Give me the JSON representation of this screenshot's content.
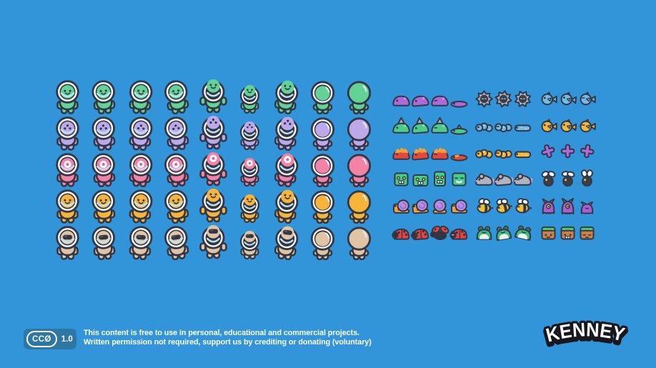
{
  "colors": {
    "background": "#3295d9",
    "outline": "#333745",
    "helmet_white": "#ffffff",
    "helmet_glass": "#bfe4f4",
    "badge_bg": "#2e76a4",
    "text": "#ffffff",
    "logo_fill": "#ffffff",
    "logo_outline": "#17171d"
  },
  "characters": {
    "poses": [
      "stand",
      "step-left",
      "step-right",
      "run",
      "jump",
      "duck",
      "lean",
      "back-helmet",
      "back"
    ],
    "rows": [
      {
        "name": "green",
        "body": "#63d395",
        "shade": "#3cba77",
        "face": "two-eyes-smile"
      },
      {
        "name": "purple",
        "body": "#bda9e9",
        "shade": "#9b80d8",
        "face": "three-eyes"
      },
      {
        "name": "pink",
        "body": "#f382a7",
        "shade": "#e3628e",
        "face": "cyclops"
      },
      {
        "name": "yellow",
        "body": "#f6b53a",
        "shade": "#e3951d",
        "face": "two-eyes-smile"
      },
      {
        "name": "beige",
        "body": "#e0c4a4",
        "shade": "#c9a87e",
        "face": "visor"
      }
    ]
  },
  "creatures": {
    "palette": {
      "slime-purple": {
        "main": "#ae68d8",
        "light": "#c98ff0"
      },
      "spiky-urchin": {
        "main": "#adb2bc",
        "dark": "#3a3e48"
      },
      "fish-blue": {
        "main": "#74bbe8",
        "light": "#a5d7f2"
      },
      "slime-green-spike": {
        "main": "#4ccb8b",
        "light": "#7fe0ae",
        "spike": "#adb2bc"
      },
      "worm-blue": {
        "main": "#74bbe8",
        "light": "#a5d7f2"
      },
      "fish-gold": {
        "main": "#f2b83c",
        "light": "#f8d36e"
      },
      "slime-fire": {
        "main": "#e5483f",
        "flame": "#f2a03c"
      },
      "worm-gold": {
        "main": "#f2b83c",
        "light": "#f8d36e"
      },
      "flyer-purple": {
        "main": "#b269da",
        "spot": "#8f47c0"
      },
      "block-green": {
        "main": "#44ce8c",
        "eye": "#f2c13f"
      },
      "mouse": {
        "main": "#b0b4bd",
        "pink": "#f0a0b4"
      },
      "fly": {
        "main": "#3a3e48",
        "wing": "#ffffff",
        "eye": "#f2c13f"
      },
      "snail": {
        "shell": "#ba8fe2",
        "body": "#f2a23c",
        "spiral": "#9a6fd0"
      },
      "bee": {
        "main": "#f2c13c",
        "wing": "#ffffff"
      },
      "monster-purple": {
        "main": "#a95fd0",
        "eye": "#f2c13f",
        "horn": "#ead9f7"
      },
      "ladybug": {
        "main": "#e5433f",
        "dark": "#33363f"
      },
      "frog": {
        "main": "#3dbe7d",
        "belly": "#eef4f0"
      },
      "block-dirt": {
        "dirt": "#d08048",
        "grass": "#4fc96d"
      }
    },
    "rows": [
      {
        "groups": [
          {
            "type": "slime-purple",
            "count": 4
          },
          {
            "type": "spiky-urchin",
            "count": 3
          },
          {
            "type": "fish-blue",
            "count": 3
          }
        ]
      },
      {
        "groups": [
          {
            "type": "slime-green-spike",
            "count": 4
          },
          {
            "type": "worm-blue",
            "count": 3
          },
          {
            "type": "fish-gold",
            "count": 3
          }
        ]
      },
      {
        "groups": [
          {
            "type": "slime-fire",
            "count": 4
          },
          {
            "type": "worm-gold",
            "count": 3
          },
          {
            "type": "flyer-purple",
            "count": 3
          }
        ]
      },
      {
        "groups": [
          {
            "type": "block-green",
            "count": 4
          },
          {
            "type": "mouse",
            "count": 3
          },
          {
            "type": "fly",
            "count": 3
          }
        ]
      },
      {
        "groups": [
          {
            "type": "snail",
            "count": 4
          },
          {
            "type": "bee",
            "count": 3
          },
          {
            "type": "monster-purple",
            "count": 3
          }
        ]
      },
      {
        "groups": [
          {
            "type": "ladybug",
            "count": 4
          },
          {
            "type": "frog",
            "count": 3
          },
          {
            "type": "block-dirt",
            "count": 3
          }
        ]
      }
    ]
  },
  "footer": {
    "badge": {
      "license": "CCØ",
      "version": "1.0"
    },
    "license_line1": "This content is free to use in personal, educational and commercial projects.",
    "license_line2": "Written permission not required, support us by crediting or donating (voluntary)",
    "logo_text": "KENNEY"
  }
}
